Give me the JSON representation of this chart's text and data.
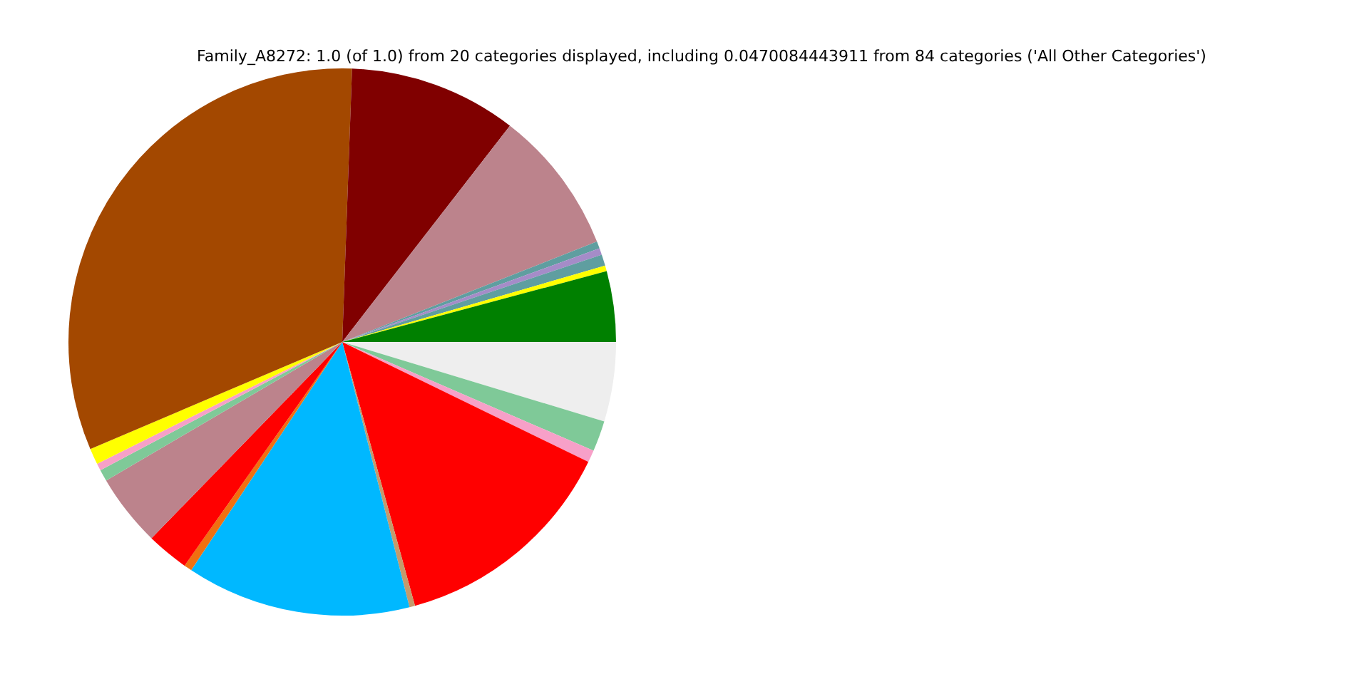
{
  "chart_data": {
    "type": "pie",
    "title": "Family_A8272: 1.0 (of 1.0) from 20 categories displayed, including 0.0470084443911 from 84 categories ('All Other Categories')",
    "categories": [
      null,
      null,
      null,
      null,
      null,
      null,
      null,
      null,
      null,
      null,
      null,
      null,
      null,
      null,
      null,
      null,
      null,
      null,
      null,
      null
    ],
    "values": [
      4.17,
      0.33,
      0.67,
      0.39,
      0.42,
      8.53,
      9.92,
      31.97,
      0.94,
      0.42,
      0.69,
      4.28,
      2.5,
      0.47,
      13.25,
      0.33,
      13.5,
      0.72,
      1.81,
      4.69
    ],
    "colors": [
      "#008000",
      "#ffff00",
      "#5f9ea0",
      "#a58cc8",
      "#5f9ea0",
      "#bc838c",
      "#800000",
      "#a34800",
      "#ffff00",
      "#f7a0c8",
      "#7fc998",
      "#bc838c",
      "#ff0000",
      "#f07010",
      "#00b8ff",
      "#c49a6c",
      "#ff0000",
      "#f7a0c8",
      "#7fc998",
      "#eeeeee"
    ]
  }
}
